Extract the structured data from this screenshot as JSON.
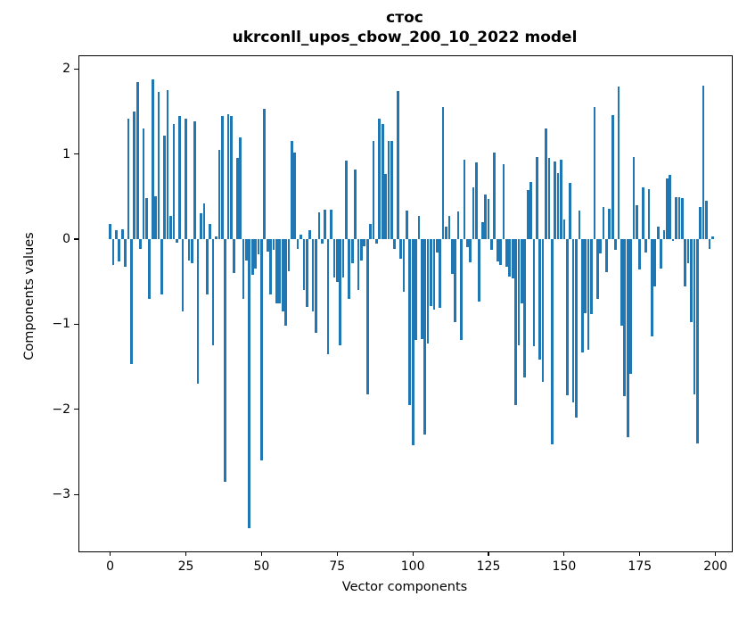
{
  "figure": {
    "title_line1": "стос",
    "title_line2": "ukrconll_upos_cbow_200_10_2022 model"
  },
  "chart_data": {
    "type": "bar",
    "title": "стос",
    "subtitle": "ukrconll_upos_cbow_200_10_2022 model",
    "xlabel": "Vector components",
    "ylabel": "Components values",
    "x_ticks": [
      0,
      25,
      50,
      75,
      100,
      125,
      150,
      175,
      200
    ],
    "x_tick_labels": [
      "0",
      "25",
      "50",
      "75",
      "100",
      "125",
      "150",
      "175",
      "200"
    ],
    "y_ticks": [
      2,
      1,
      0,
      -1,
      -2,
      -3
    ],
    "y_tick_labels": [
      "2",
      "1",
      "0",
      "−1",
      "−2",
      "−3"
    ],
    "xlim": [
      -10.2,
      205.4
    ],
    "ylim": [
      -3.67,
      2.15
    ],
    "grid": false,
    "legend": null,
    "bar_color": "#1f77b4",
    "bar_width": 0.8,
    "x_start_index": 0,
    "values": [
      0.18,
      -0.3,
      0.1,
      -0.26,
      0.12,
      -0.32,
      1.42,
      -1.47,
      1.5,
      1.85,
      -0.12,
      1.3,
      0.48,
      -0.7,
      1.88,
      0.5,
      1.73,
      -0.65,
      1.22,
      1.75,
      0.27,
      1.35,
      -0.04,
      1.45,
      -0.85,
      1.42,
      -0.25,
      -0.28,
      1.38,
      -1.7,
      0.3,
      0.42,
      -0.65,
      0.18,
      -1.25,
      0.03,
      1.05,
      1.45,
      -2.85,
      1.47,
      1.45,
      -0.4,
      0.95,
      1.2,
      -0.7,
      -0.25,
      -3.4,
      -0.42,
      -0.35,
      -0.18,
      -2.6,
      1.53,
      -0.15,
      -0.65,
      -0.13,
      -0.75,
      -0.75,
      -0.85,
      -1.02,
      -0.38,
      1.15,
      1.02,
      -0.12,
      0.05,
      -0.6,
      -0.8,
      0.1,
      -0.85,
      -1.1,
      0.32,
      -0.05,
      0.35,
      -1.35,
      0.35,
      -0.45,
      -0.5,
      -1.25,
      -0.45,
      0.92,
      -0.7,
      -0.28,
      0.82,
      -0.6,
      -0.25,
      -0.08,
      -1.82,
      0.18,
      1.15,
      -0.05,
      1.42,
      1.35,
      0.77,
      1.15,
      1.15,
      -0.11,
      1.74,
      -0.23,
      -0.62,
      0.34,
      -1.95,
      -2.42,
      -1.18,
      0.27,
      -1.17,
      -2.3,
      -1.23,
      -0.79,
      -0.83,
      -0.16,
      -0.81,
      1.55,
      0.15,
      0.27,
      -0.41,
      -0.97,
      0.33,
      -1.18,
      0.93,
      -0.09,
      -0.27,
      0.61,
      0.9,
      -0.73,
      0.2,
      0.52,
      0.47,
      -0.13,
      1.02,
      -0.26,
      -0.3,
      0.88,
      -0.32,
      -0.44,
      -0.46,
      -1.95,
      -1.25,
      -0.76,
      -1.63,
      0.58,
      0.67,
      -1.26,
      0.97,
      -1.42,
      -1.68,
      1.3,
      0.95,
      -2.41,
      0.91,
      0.78,
      0.93,
      0.23,
      -1.84,
      0.66,
      -1.92,
      -2.1,
      0.34,
      -1.33,
      -0.87,
      -1.3,
      -0.88,
      1.55,
      -0.7,
      -0.17,
      0.38,
      -0.39,
      0.36,
      1.46,
      -0.13,
      1.79,
      -1.02,
      -1.85,
      -2.33,
      -1.58,
      0.97,
      0.4,
      -0.36,
      0.61,
      -0.16,
      0.59,
      -1.14,
      -0.56,
      0.15,
      -0.35,
      0.1,
      0.71,
      0.76,
      -0.02,
      0.49,
      0.49,
      0.48,
      -0.56,
      -0.28,
      -0.98,
      -1.82,
      -2.4,
      0.38,
      1.8,
      0.45,
      -0.12,
      0.03
    ]
  }
}
